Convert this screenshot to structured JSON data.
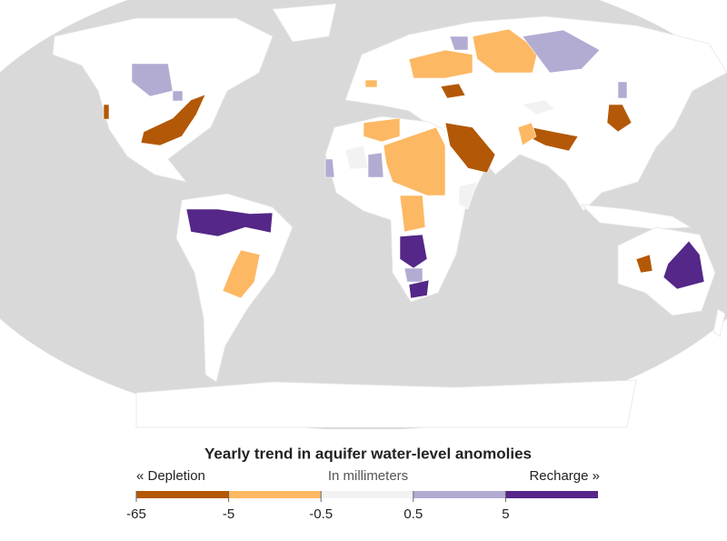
{
  "legend": {
    "title": "Yearly trend in aquifer water-level anomolies",
    "left_label": "« Depletion",
    "center_label": "In millimeters",
    "right_label": "Recharge »",
    "classes": [
      {
        "color": "#b35806"
      },
      {
        "color": "#fdb863"
      },
      {
        "color": "#f2f2f2"
      },
      {
        "color": "#b2abd2"
      },
      {
        "color": "#542788"
      }
    ],
    "ticks": [
      -65,
      -5,
      -0.5,
      0.5,
      5
    ]
  }
}
